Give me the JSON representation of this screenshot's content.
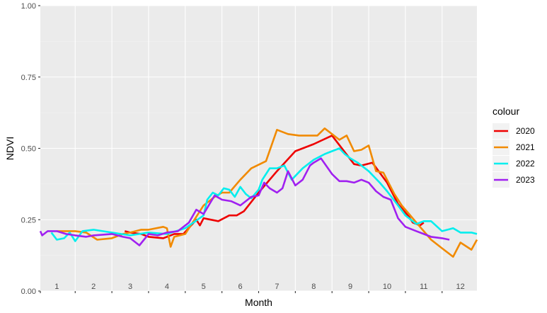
{
  "chart_data": {
    "type": "line",
    "xlabel": "Month",
    "ylabel": "NDVI",
    "xlim": [
      0.55,
      12.45
    ],
    "ylim": [
      0,
      1
    ],
    "y_ticks": [
      {
        "value": 0.0,
        "label": "0.00"
      },
      {
        "value": 0.25,
        "label": "0.25"
      },
      {
        "value": 0.5,
        "label": "0.50"
      },
      {
        "value": 0.75,
        "label": "0.75"
      },
      {
        "value": 1.0,
        "label": "1.00"
      }
    ],
    "month_labels": [
      {
        "value": 1,
        "label": "1"
      },
      {
        "value": 2,
        "label": "2"
      },
      {
        "value": 3,
        "label": "3"
      },
      {
        "value": 4,
        "label": "4"
      },
      {
        "value": 5,
        "label": "5"
      },
      {
        "value": 6,
        "label": "6"
      },
      {
        "value": 7,
        "label": "7"
      },
      {
        "value": 8,
        "label": "8"
      },
      {
        "value": 9,
        "label": "9"
      },
      {
        "value": 10,
        "label": "10"
      },
      {
        "value": 11,
        "label": "11"
      },
      {
        "value": 12,
        "label": "12"
      }
    ],
    "month_boundaries": [
      1.5,
      2.5,
      3.5,
      4.5,
      5.5,
      6.5,
      7.5,
      8.5,
      9.5,
      10.5,
      11.5
    ],
    "grid": true,
    "legend_title": "colour",
    "legend_position": "right",
    "series": [
      {
        "name": "2020",
        "color": "#ee0000",
        "x": [
          2.85,
          3.0,
          3.3,
          3.5,
          3.9,
          4.2,
          4.45,
          4.8,
          4.9,
          5.0,
          5.4,
          5.7,
          5.9,
          6.1,
          6.5,
          7.0,
          7.5,
          7.7,
          8.0,
          8.5,
          9.1,
          9.3,
          9.6,
          10.0,
          10.3,
          10.6,
          10.7,
          10.9,
          11.0
        ],
        "y": [
          0.21,
          0.205,
          0.2,
          0.19,
          0.185,
          0.2,
          0.2,
          0.25,
          0.23,
          0.255,
          0.245,
          0.265,
          0.265,
          0.28,
          0.345,
          0.42,
          0.49,
          0.5,
          0.515,
          0.545,
          0.445,
          0.44,
          0.45,
          0.38,
          0.305,
          0.26,
          0.24,
          0.23,
          0.24
        ]
      },
      {
        "name": "2021",
        "color": "#f18a00",
        "x": [
          1.0,
          1.25,
          1.5,
          1.8,
          2.1,
          2.5,
          2.8,
          3.0,
          3.3,
          3.5,
          3.9,
          4.0,
          4.1,
          4.2,
          4.5,
          5.0,
          5.3,
          5.5,
          5.7,
          6.0,
          6.3,
          6.7,
          7.0,
          7.3,
          7.6,
          7.9,
          8.1,
          8.3,
          8.5,
          8.7,
          8.9,
          9.1,
          9.3,
          9.5,
          9.7,
          9.9,
          10.2,
          10.4,
          10.6,
          10.8,
          11.0,
          11.2,
          11.5,
          11.8,
          12.0,
          12.3,
          12.45
        ],
        "y": [
          0.21,
          0.21,
          0.21,
          0.205,
          0.18,
          0.185,
          0.2,
          0.205,
          0.215,
          0.215,
          0.225,
          0.22,
          0.155,
          0.19,
          0.2,
          0.3,
          0.33,
          0.345,
          0.345,
          0.39,
          0.43,
          0.455,
          0.565,
          0.55,
          0.545,
          0.545,
          0.545,
          0.57,
          0.55,
          0.53,
          0.545,
          0.49,
          0.495,
          0.51,
          0.42,
          0.415,
          0.34,
          0.3,
          0.27,
          0.24,
          0.21,
          0.18,
          0.15,
          0.12,
          0.17,
          0.145,
          0.18
        ]
      },
      {
        "name": "2022",
        "color": "#00eeee",
        "x": [
          0.85,
          1.0,
          1.2,
          1.35,
          1.5,
          1.7,
          2.0,
          2.5,
          3.0,
          3.5,
          4.0,
          4.5,
          5.0,
          5.1,
          5.25,
          5.4,
          5.55,
          5.7,
          5.85,
          6.0,
          6.15,
          6.3,
          6.5,
          6.6,
          6.8,
          7.0,
          7.2,
          7.4,
          7.7,
          8.0,
          8.3,
          8.5,
          8.7,
          8.85,
          9.0,
          9.2,
          9.5,
          9.8,
          10.0,
          10.3,
          10.5,
          10.8,
          11.0,
          11.2,
          11.5,
          11.8,
          12.0,
          12.3,
          12.45
        ],
        "y": [
          0.205,
          0.18,
          0.185,
          0.205,
          0.175,
          0.21,
          0.215,
          0.205,
          0.195,
          0.205,
          0.2,
          0.22,
          0.265,
          0.32,
          0.345,
          0.335,
          0.36,
          0.355,
          0.33,
          0.365,
          0.34,
          0.325,
          0.355,
          0.39,
          0.43,
          0.43,
          0.44,
          0.39,
          0.43,
          0.46,
          0.48,
          0.49,
          0.5,
          0.48,
          0.465,
          0.45,
          0.42,
          0.38,
          0.35,
          0.3,
          0.265,
          0.235,
          0.245,
          0.245,
          0.21,
          0.22,
          0.205,
          0.205,
          0.2
        ]
      },
      {
        "name": "2023",
        "color": "#a020f0",
        "x": [
          0.55,
          0.6,
          0.75,
          1.0,
          1.25,
          1.5,
          1.8,
          2.0,
          2.5,
          2.8,
          3.0,
          3.25,
          3.5,
          3.75,
          4.0,
          4.3,
          4.6,
          4.8,
          5.0,
          5.3,
          5.5,
          5.75,
          6.0,
          6.3,
          6.5,
          6.65,
          6.8,
          7.0,
          7.15,
          7.3,
          7.5,
          7.7,
          7.9,
          8.0,
          8.2,
          8.5,
          8.7,
          8.9,
          9.1,
          9.3,
          9.5,
          9.7,
          9.9,
          10.1,
          10.3,
          10.5,
          10.8,
          11.0,
          11.2,
          11.5,
          11.7
        ],
        "y": [
          0.21,
          0.195,
          0.21,
          0.21,
          0.2,
          0.195,
          0.19,
          0.195,
          0.2,
          0.19,
          0.185,
          0.16,
          0.2,
          0.195,
          0.205,
          0.21,
          0.24,
          0.285,
          0.27,
          0.335,
          0.32,
          0.315,
          0.3,
          0.33,
          0.335,
          0.38,
          0.36,
          0.345,
          0.36,
          0.42,
          0.37,
          0.39,
          0.44,
          0.45,
          0.465,
          0.41,
          0.385,
          0.385,
          0.38,
          0.39,
          0.38,
          0.35,
          0.33,
          0.32,
          0.255,
          0.225,
          0.21,
          0.2,
          0.19,
          0.185,
          0.18
        ]
      }
    ]
  }
}
